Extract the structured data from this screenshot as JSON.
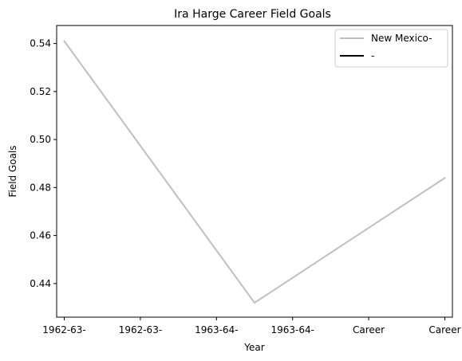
{
  "chart_data": {
    "type": "line",
    "title": "Ira Harge Career Field Goals",
    "xlabel": "Year",
    "ylabel": "Field Goals",
    "categories": [
      "1962-63-",
      "1962-63-",
      "1963-64-",
      "1963-64-",
      "Career",
      "Career"
    ],
    "x_positions": [
      0,
      1,
      2,
      3,
      4,
      5
    ],
    "ylim": [
      0.426,
      0.5475
    ],
    "yticks": [
      0.44,
      0.46,
      0.48,
      0.5,
      0.52,
      0.54
    ],
    "ytick_labels": [
      "0.44",
      "0.46",
      "0.48",
      "0.50",
      "0.52",
      "0.54"
    ],
    "grid": false,
    "legend_position": "top-right",
    "series": [
      {
        "name": "New Mexico-",
        "color": "#bfbfbf",
        "points": [
          {
            "x": 0,
            "y": 0.541
          },
          {
            "x": 2.5,
            "y": 0.432
          },
          {
            "x": 5,
            "y": 0.484
          }
        ]
      },
      {
        "name": "-",
        "color": "#000000",
        "points": []
      }
    ]
  }
}
